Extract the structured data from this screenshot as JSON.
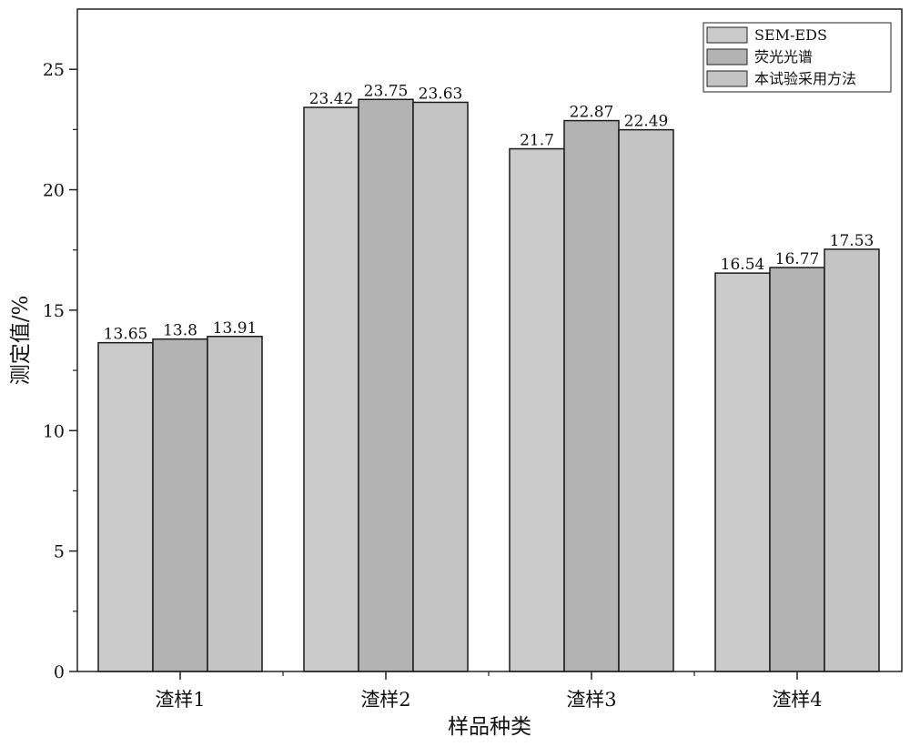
{
  "chart_data": {
    "type": "bar",
    "xlabel": "样品种类",
    "ylabel": "测定值/%",
    "categories": [
      "渣样1",
      "渣样2",
      "渣样3",
      "渣样4"
    ],
    "ylim": [
      0,
      27.5
    ],
    "yticks": [
      0,
      5,
      10,
      15,
      20,
      25
    ],
    "series": [
      {
        "name": "SEM-EDS",
        "color": "#cbcbcb",
        "values": [
          13.65,
          23.42,
          21.7,
          16.54
        ],
        "labels": [
          "13.65",
          "23.42",
          "21.7",
          "16.54"
        ]
      },
      {
        "name": "荧光光谱",
        "color": "#b3b3b3",
        "values": [
          13.8,
          23.75,
          22.87,
          16.77
        ],
        "labels": [
          "13.8",
          "23.75",
          "22.87",
          "16.77"
        ]
      },
      {
        "name": "本试验采用方法",
        "color": "#c4c4c4",
        "values": [
          13.91,
          23.63,
          22.49,
          17.53
        ],
        "labels": [
          "13.91",
          "23.63",
          "22.49",
          "17.53"
        ]
      }
    ],
    "legend_position": "top-right",
    "grid": false
  }
}
